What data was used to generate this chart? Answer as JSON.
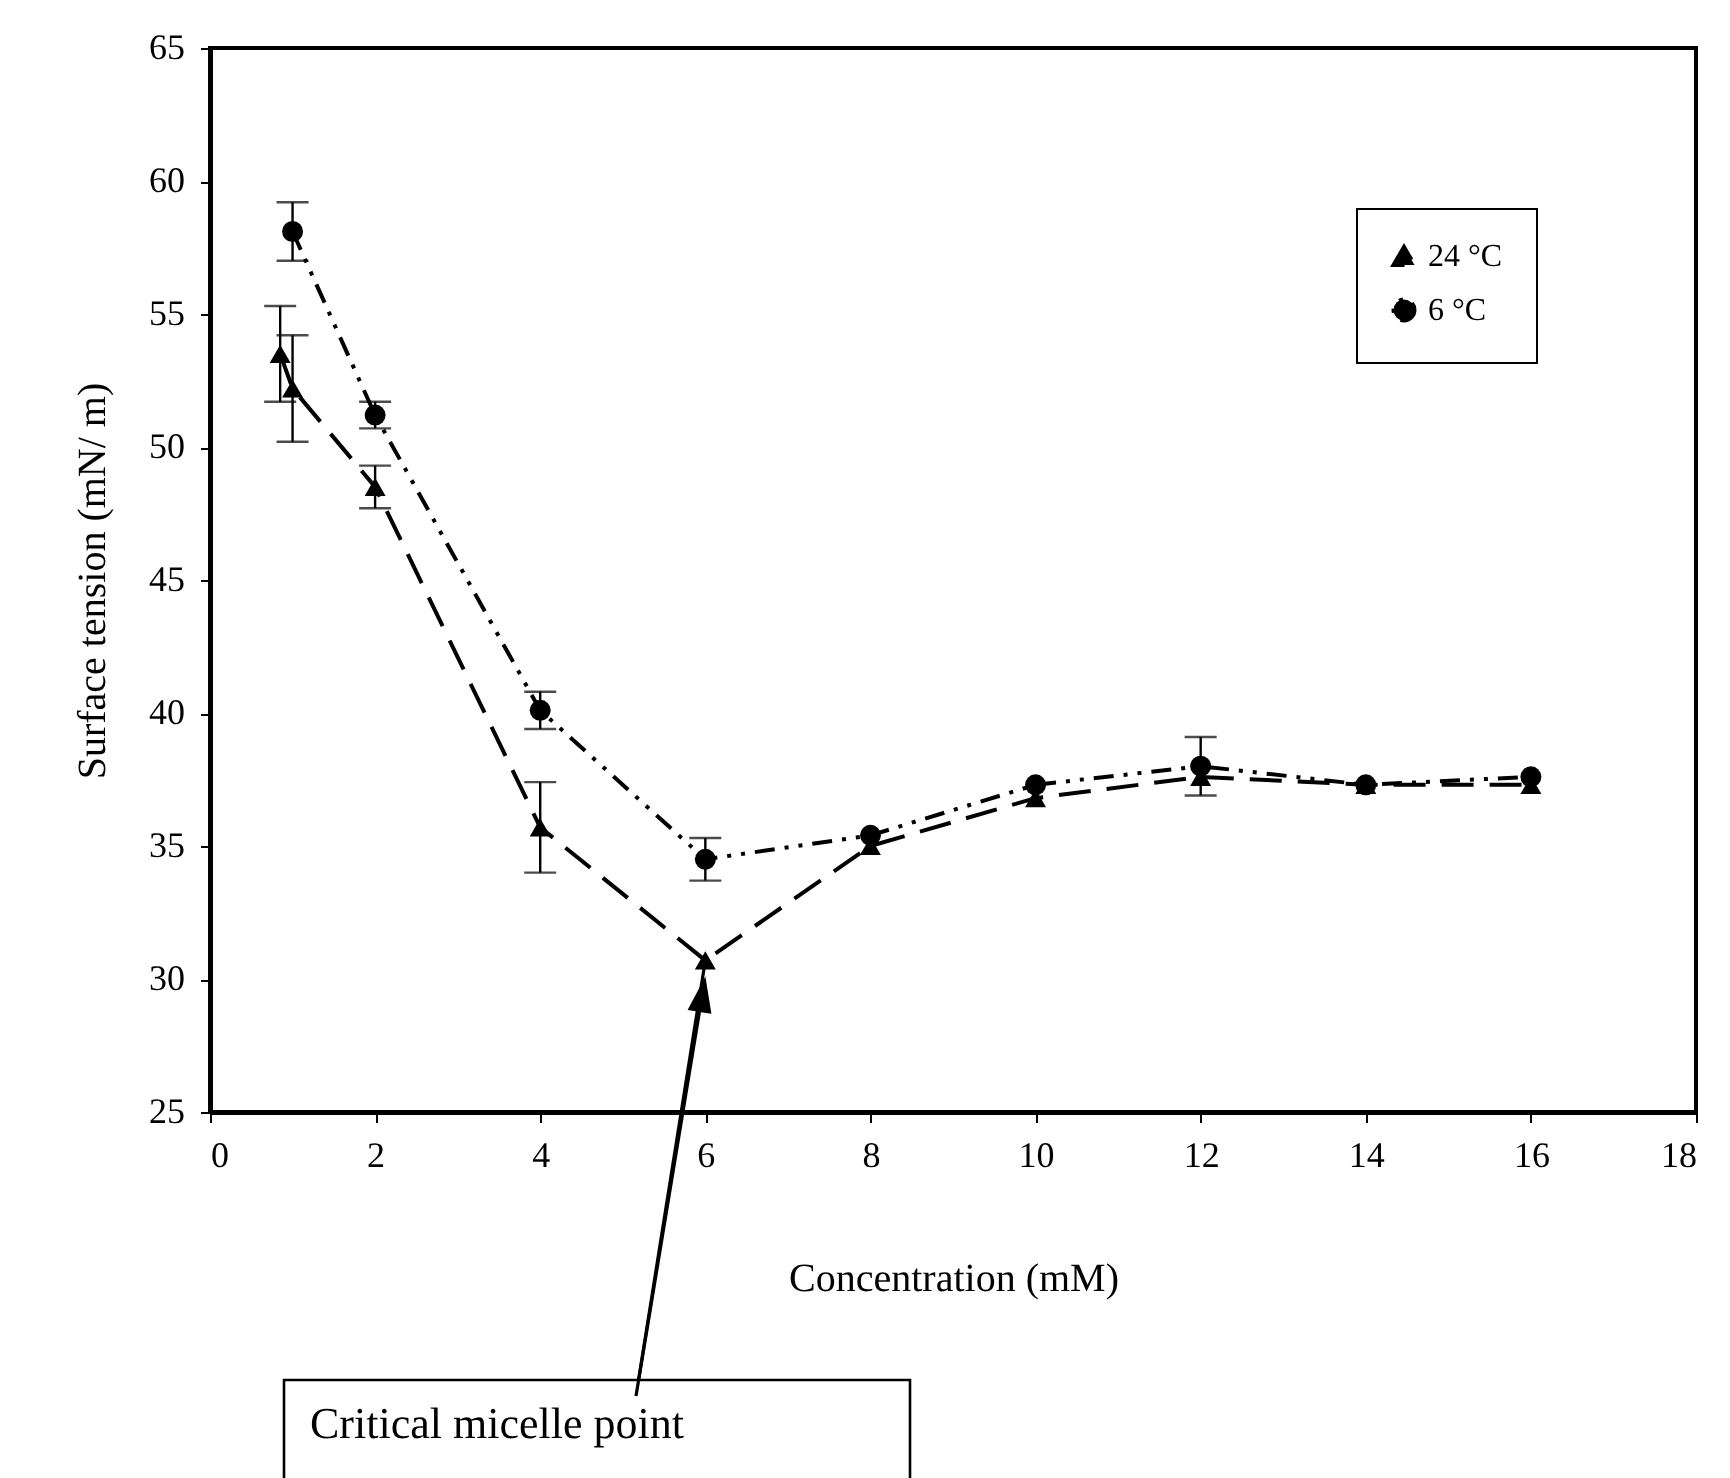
{
  "chart_data": {
    "type": "line",
    "xlabel": "Concentration (mM)",
    "ylabel": "Surface tension (mN/ m)",
    "xlim": [
      0,
      18
    ],
    "xticks": [
      0,
      2,
      4,
      6,
      8,
      10,
      12,
      14,
      16,
      18
    ],
    "ylim": [
      25,
      65
    ],
    "yticks": [
      25,
      30,
      35,
      40,
      45,
      50,
      55,
      60,
      65
    ],
    "grid": false,
    "legend": "top right",
    "series": [
      {
        "name": "24 °C",
        "color": "#000000",
        "line_style": "dashed",
        "marker": "triangle",
        "x": [
          0.85,
          1,
          2,
          4,
          6,
          8,
          10,
          12,
          14,
          16
        ],
        "values": [
          53.5,
          52.2,
          48.5,
          35.7,
          30.7,
          35,
          36.8,
          37.6,
          37.3,
          37.3
        ],
        "errors": [
          1.8,
          2,
          0.8,
          1.7,
          null,
          null,
          null,
          null,
          null,
          null
        ]
      },
      {
        "name": "6 °C",
        "color": "#000000",
        "line_style": "dotted",
        "marker": "circle",
        "x": [
          1,
          2,
          4,
          6,
          8,
          10,
          12,
          14,
          16
        ],
        "values": [
          58.1,
          51.2,
          40.1,
          34.5,
          35.4,
          37.3,
          38,
          37.3,
          37.6
        ],
        "errors": [
          1.1,
          0.5,
          0.7,
          0.8,
          null,
          null,
          1.1,
          null,
          null
        ]
      }
    ],
    "annotations": [
      {
        "text": "Critical micelle point",
        "x": 6,
        "y": 30.7
      }
    ]
  }
}
